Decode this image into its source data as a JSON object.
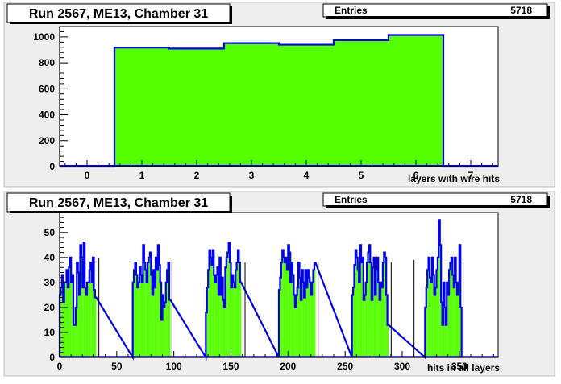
{
  "colors": {
    "pad_fill": "#eeeeee",
    "frame_fill": "#ffffff",
    "hist_fill": "#55ff00",
    "hist_line": "#0000ee",
    "axis": "#000000"
  },
  "chart_data": [
    {
      "type": "bar",
      "title": "Run 2567, ME13, Chamber 31",
      "stats_label": "Entries",
      "stats_value": "5718",
      "xlabel": "layers with wire hits",
      "ylabel": "",
      "xlim": [
        -0.5,
        7.5
      ],
      "ylim": [
        0,
        1080
      ],
      "x_ticks": [
        0,
        1,
        2,
        3,
        4,
        5,
        6,
        7
      ],
      "y_ticks": [
        0,
        200,
        400,
        600,
        800,
        1000
      ],
      "bin_edges": [
        -0.5,
        0.5,
        1.5,
        2.5,
        3.5,
        4.5,
        5.5,
        6.5,
        7.5
      ],
      "values": [
        0,
        918,
        910,
        952,
        940,
        975,
        1015,
        0
      ],
      "grid": false
    },
    {
      "type": "bar",
      "title": "Run 2567, ME13, Chamber 31",
      "stats_label": "Entries",
      "stats_value": "5718",
      "xlabel": "hits in all layers",
      "ylabel": "",
      "xlim": [
        0,
        384
      ],
      "ylim": [
        0,
        58
      ],
      "x_ticks": [
        0,
        50,
        100,
        150,
        200,
        250,
        300,
        350
      ],
      "y_ticks": [
        0,
        10,
        20,
        30,
        40,
        50
      ],
      "bin_width": 1,
      "clusters": [
        {
          "start": 0,
          "values": [
            25,
            28,
            33,
            22,
            30,
            30,
            35,
            28,
            36,
            40,
            30,
            33,
            13,
            13,
            20,
            38,
            34,
            25,
            45,
            40,
            28,
            46,
            28,
            25,
            30,
            30,
            35,
            38,
            30,
            40,
            27,
            24
          ]
        },
        {
          "start": 64,
          "values": [
            30,
            35,
            38,
            33,
            28,
            30,
            36,
            33,
            30,
            45,
            38,
            35,
            30,
            38,
            40,
            42,
            33,
            25,
            35,
            28,
            40,
            35,
            45,
            37,
            30,
            15,
            25,
            20,
            22,
            30,
            35,
            38,
            23
          ]
        },
        {
          "start": 128,
          "values": [
            18,
            28,
            35,
            43,
            40,
            37,
            43,
            33,
            30,
            33,
            36,
            25,
            40,
            25,
            32,
            23,
            20,
            36,
            40,
            42,
            46,
            38,
            28,
            33,
            30,
            28,
            35,
            38,
            43,
            38,
            30
          ]
        },
        {
          "start": 192,
          "values": [
            27,
            32,
            38,
            43,
            40,
            38,
            40,
            35,
            45,
            42,
            30,
            38,
            33,
            25,
            20,
            25,
            28,
            38,
            32,
            23,
            35,
            30,
            24,
            35,
            28,
            35,
            32,
            30,
            25,
            30,
            35,
            38
          ]
        },
        {
          "start": 256,
          "values": [
            25,
            28,
            37,
            43,
            40,
            35,
            30,
            45,
            38,
            40,
            23,
            25,
            30,
            38,
            42,
            45,
            38,
            23,
            36,
            40,
            25,
            35,
            40,
            30,
            23,
            30,
            28,
            38,
            42,
            40,
            25,
            13
          ]
        },
        {
          "start": 320,
          "values": [
            20,
            28,
            35,
            40,
            32,
            30,
            40,
            33,
            25,
            28,
            35,
            40,
            55,
            45,
            22,
            13,
            30,
            20,
            13,
            30,
            25,
            35,
            38,
            40,
            33,
            28,
            40,
            30,
            25,
            30,
            45,
            20
          ]
        }
      ],
      "spikes": [
        {
          "x": 34,
          "value": 40
        },
        {
          "x": 98,
          "value": 38
        },
        {
          "x": 162,
          "value": 38
        },
        {
          "x": 226,
          "value": 38
        },
        {
          "x": 290,
          "value": 38
        },
        {
          "x": 310,
          "value": 39
        },
        {
          "x": 353,
          "value": 38
        }
      ],
      "grid": false
    }
  ]
}
